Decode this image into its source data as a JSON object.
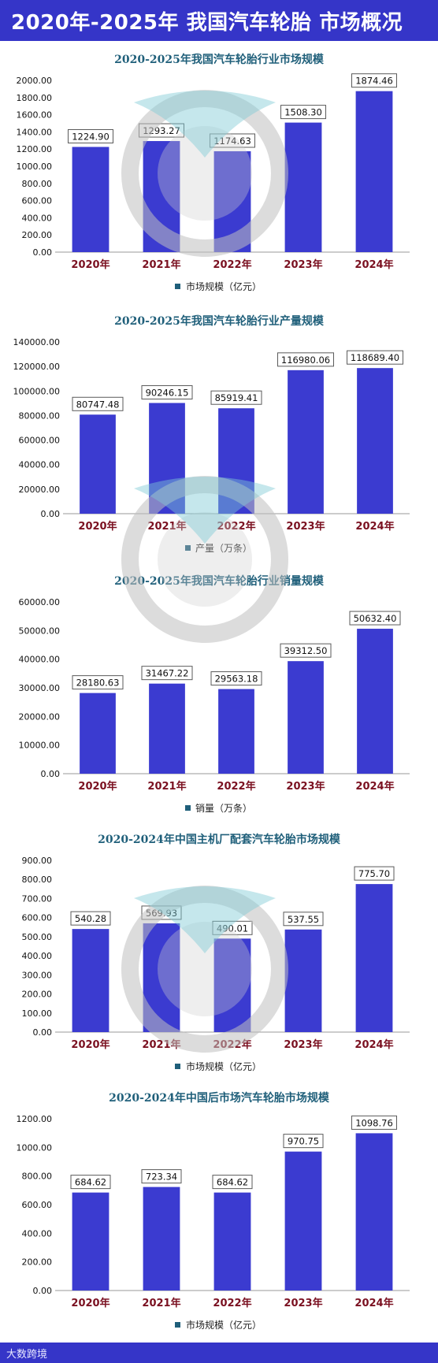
{
  "header": {
    "title": "2020年-2025年 我国汽车轮胎 市场概况"
  },
  "footer": {
    "brand": "大数跨境"
  },
  "colors": {
    "bar": "#3b3bd0",
    "banner": "#3535c8",
    "title": "#1f5f7a",
    "category": "#7a1020"
  },
  "chart_data": [
    {
      "type": "bar",
      "title": "2020-2025年我国汽车轮胎行业市场规模",
      "categories": [
        "2020年",
        "2021年",
        "2022年",
        "2023年",
        "2024年"
      ],
      "values": [
        1224.9,
        1293.27,
        1174.63,
        1508.3,
        1874.46
      ],
      "labels": [
        "1224.90",
        "1293.27",
        "1174.63",
        "1508.30",
        "1874.46"
      ],
      "yticks": [
        "0.00",
        "200.00",
        "400.00",
        "600.00",
        "800.00",
        "1000.00",
        "1200.00",
        "1400.00",
        "1600.00",
        "1800.00",
        "2000.00"
      ],
      "ylim": [
        0,
        2000
      ],
      "legend": "市场规模（亿元）",
      "legend_position": "bottom",
      "grid": false
    },
    {
      "type": "bar",
      "title": "2020-2025年我国汽车轮胎行业产量规模",
      "categories": [
        "2020年",
        "2021年",
        "2022年",
        "2023年",
        "2024年"
      ],
      "values": [
        80747.48,
        90246.15,
        85919.41,
        116980.06,
        118689.4
      ],
      "labels": [
        "80747.48",
        "90246.15",
        "85919.41",
        "116980.06",
        "118689.40"
      ],
      "yticks": [
        "0.00",
        "20000.00",
        "40000.00",
        "60000.00",
        "80000.00",
        "100000.00",
        "120000.00",
        "140000.00"
      ],
      "ylim": [
        0,
        140000
      ],
      "legend": "产量（万条）",
      "legend_position": "bottom",
      "grid": false
    },
    {
      "type": "bar",
      "title": "2020-2025年我国汽车轮胎行业销量规模",
      "categories": [
        "2020年",
        "2021年",
        "2022年",
        "2023年",
        "2024年"
      ],
      "values": [
        28180.63,
        31467.22,
        29563.18,
        39312.5,
        50632.4
      ],
      "labels": [
        "28180.63",
        "31467.22",
        "29563.18",
        "39312.50",
        "50632.40"
      ],
      "yticks": [
        "0.00",
        "10000.00",
        "20000.00",
        "30000.00",
        "40000.00",
        "50000.00",
        "60000.00"
      ],
      "ylim": [
        0,
        60000
      ],
      "legend": "销量（万条）",
      "legend_position": "bottom",
      "grid": false
    },
    {
      "type": "bar",
      "title": "2020-2024年中国主机厂配套汽车轮胎市场规模",
      "categories": [
        "2020年",
        "2021年",
        "2022年",
        "2023年",
        "2024年"
      ],
      "values": [
        540.28,
        569.93,
        490.01,
        537.55,
        775.7
      ],
      "labels": [
        "540.28",
        "569.93",
        "490.01",
        "537.55",
        "775.70"
      ],
      "yticks": [
        "0.00",
        "100.00",
        "200.00",
        "300.00",
        "400.00",
        "500.00",
        "600.00",
        "700.00",
        "800.00",
        "900.00"
      ],
      "ylim": [
        0,
        900
      ],
      "legend": "市场规模（亿元）",
      "legend_position": "bottom",
      "grid": false
    },
    {
      "type": "bar",
      "title": "2020-2024年中国后市场汽车轮胎市场规模",
      "categories": [
        "2020年",
        "2021年",
        "2022年",
        "2023年",
        "2024年"
      ],
      "values": [
        684.62,
        723.34,
        684.62,
        970.75,
        1098.76
      ],
      "labels": [
        "684.62",
        "723.34",
        "684.62",
        "970.75",
        "1098.76"
      ],
      "yticks": [
        "0.00",
        "200.00",
        "400.00",
        "600.00",
        "800.00",
        "1000.00",
        "1200.00"
      ],
      "ylim": [
        0,
        1200
      ],
      "legend": "市场规模（亿元）",
      "legend_position": "bottom",
      "grid": false
    }
  ]
}
